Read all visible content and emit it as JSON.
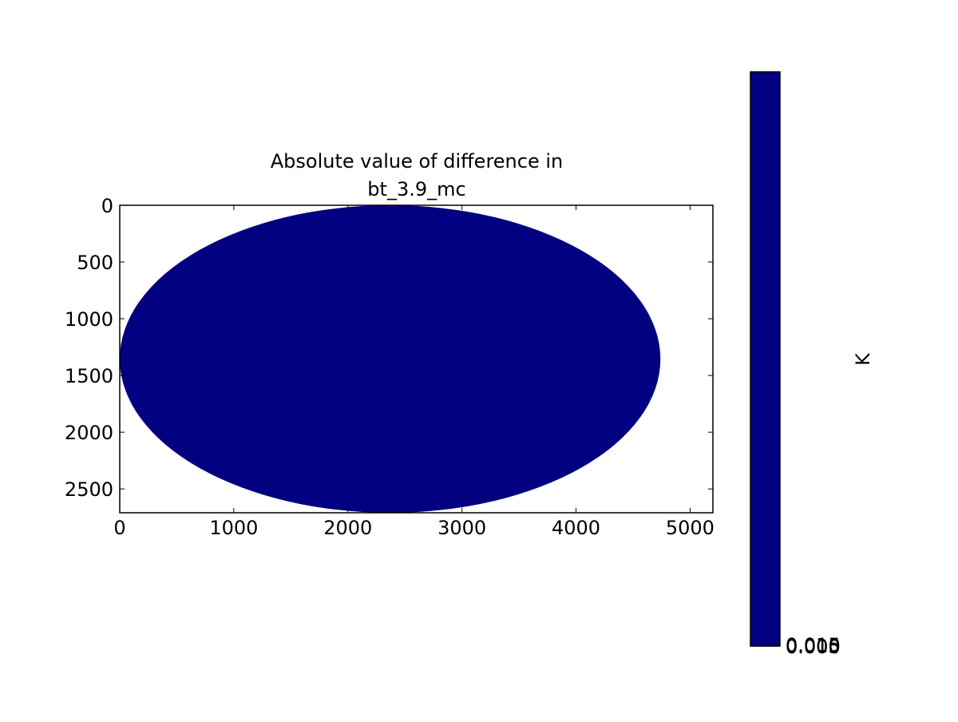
{
  "chart_data": {
    "type": "image",
    "title_lines": [
      "Absolute value of difference in",
      "bt_3.9_mc"
    ],
    "xlim": [
      0,
      5200
    ],
    "ylim": [
      2710,
      0
    ],
    "xticks": [
      0,
      1000,
      2000,
      3000,
      4000,
      5000
    ],
    "yticks": [
      0,
      500,
      1000,
      1500,
      2000,
      2500
    ],
    "disk_center": [
      2370,
      1355
    ],
    "disk_radii": [
      2370,
      1355
    ],
    "value": 0,
    "color": "#000080",
    "colorbar": {
      "label": "K",
      "clim": [
        0,
        5
      ],
      "ticks": [
        {
          "value": 0,
          "label": "0.000"
        },
        {
          "value": 0.005,
          "label": "0.005"
        },
        {
          "value": 0.01,
          "label": "0.010"
        },
        {
          "value": 0.015,
          "label": "0.015"
        }
      ]
    }
  }
}
